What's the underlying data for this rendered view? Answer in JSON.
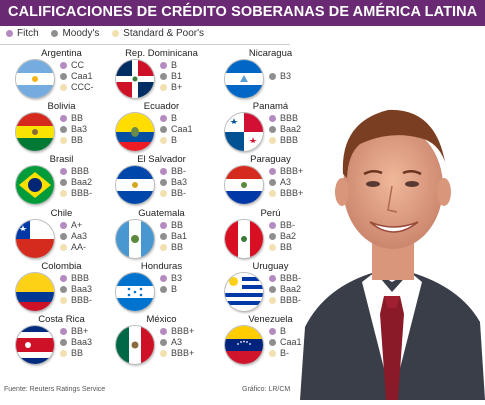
{
  "title": "CALIFICACIONES DE CRÉDITO SOBERANAS DE AMÉRICA LATINA",
  "legend": {
    "fitch": "Fitch",
    "moodys": "Moody's",
    "sp": "Standard & Poor's"
  },
  "countries": [
    {
      "name": "Argentina",
      "ratings": [
        "CC",
        "Caa1",
        "CCC-"
      ]
    },
    {
      "name": "Rep. Dominicana",
      "ratings": [
        "B",
        "B1",
        "B+"
      ]
    },
    {
      "name": "Nicaragua",
      "ratings": [
        "",
        "B3",
        ""
      ]
    },
    {
      "name": "Bolivia",
      "ratings": [
        "BB",
        "Ba3",
        "BB"
      ]
    },
    {
      "name": "Ecuador",
      "ratings": [
        "B",
        "Caa1",
        "B"
      ]
    },
    {
      "name": "Panamá",
      "ratings": [
        "BBB",
        "Baa2",
        "BBB"
      ]
    },
    {
      "name": "Brasil",
      "ratings": [
        "BBB",
        "Baa2",
        "BBB-"
      ]
    },
    {
      "name": "El Salvador",
      "ratings": [
        "BB-",
        "Ba3",
        "BB-"
      ]
    },
    {
      "name": "Paraguay",
      "ratings": [
        "BBB+",
        "A3",
        "BBB+"
      ]
    },
    {
      "name": "Chile",
      "ratings": [
        "A+",
        "Aa3",
        "AA-"
      ]
    },
    {
      "name": "Guatemala",
      "ratings": [
        "BB",
        "Ba1",
        "BB"
      ]
    },
    {
      "name": "Perú",
      "ratings": [
        "BB-",
        "Ba2",
        "BB"
      ]
    },
    {
      "name": "Colombia",
      "ratings": [
        "BBB",
        "Baa3",
        "BBB-"
      ]
    },
    {
      "name": "Honduras",
      "ratings": [
        "B3",
        "B",
        ""
      ]
    },
    {
      "name": "Uruguay",
      "ratings": [
        "BBB-",
        "Baa2",
        "BBB-"
      ]
    },
    {
      "name": "Costa Rica",
      "ratings": [
        "BB+",
        "Baa3",
        "BB"
      ]
    },
    {
      "name": "México",
      "ratings": [
        "BBB+",
        "A3",
        "BBB+"
      ]
    },
    {
      "name": "Venezuela",
      "ratings": [
        "B",
        "Caa1",
        "B-"
      ]
    }
  ],
  "footer": {
    "source": "Fuente: Reuters Ratings Service",
    "credit": "Gráfico: LR/CM"
  },
  "colors": {
    "title_bg": "#6a2a73",
    "fitch": "#b58ac0",
    "moodys": "#8f8f8f",
    "sp": "#f3e0b0"
  }
}
